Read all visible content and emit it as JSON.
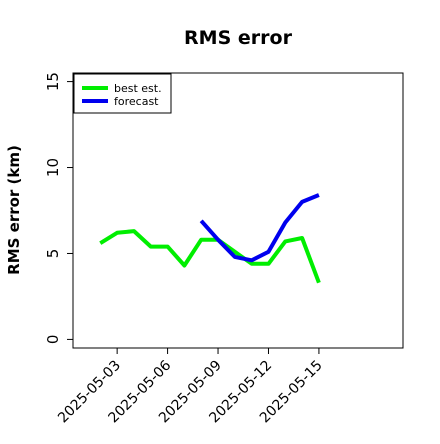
{
  "chart_data": {
    "type": "line",
    "title": "RMS error",
    "ylabel": "RMS error (km)",
    "xlabel": "",
    "ylim": [
      -0.5,
      15.5
    ],
    "yticks": [
      0,
      5,
      10,
      15
    ],
    "xlim": [
      "2025-04-30T09:00",
      "2025-05-20T00:00"
    ],
    "xticks": [
      "2025-05-03",
      "2025-05-06",
      "2025-05-09",
      "2025-05-12",
      "2025-05-15"
    ],
    "legend_position": "top-left",
    "grid": false,
    "series": [
      {
        "name": "best est.",
        "color": "#00ee00",
        "points": [
          [
            "2025-05-02",
            5.6
          ],
          [
            "2025-05-03",
            6.2
          ],
          [
            "2025-05-04",
            6.3
          ],
          [
            "2025-05-05",
            5.4
          ],
          [
            "2025-05-06",
            5.4
          ],
          [
            "2025-05-07",
            4.3
          ],
          [
            "2025-05-08",
            5.8
          ],
          [
            "2025-05-09",
            5.8
          ],
          [
            "2025-05-10",
            5.1
          ],
          [
            "2025-05-11",
            4.4
          ],
          [
            "2025-05-12",
            4.4
          ],
          [
            "2025-05-13",
            5.7
          ],
          [
            "2025-05-14",
            5.9
          ],
          [
            "2025-05-15",
            3.3
          ]
        ]
      },
      {
        "name": "forecast",
        "color": "#0000ee",
        "points": [
          [
            "2025-05-08",
            6.9
          ],
          [
            "2025-05-09",
            5.8
          ],
          [
            "2025-05-10",
            4.8
          ],
          [
            "2025-05-11",
            4.6
          ],
          [
            "2025-05-12",
            5.1
          ],
          [
            "2025-05-13",
            6.8
          ],
          [
            "2025-05-14",
            8.0
          ],
          [
            "2025-05-15",
            8.4
          ]
        ]
      }
    ]
  }
}
